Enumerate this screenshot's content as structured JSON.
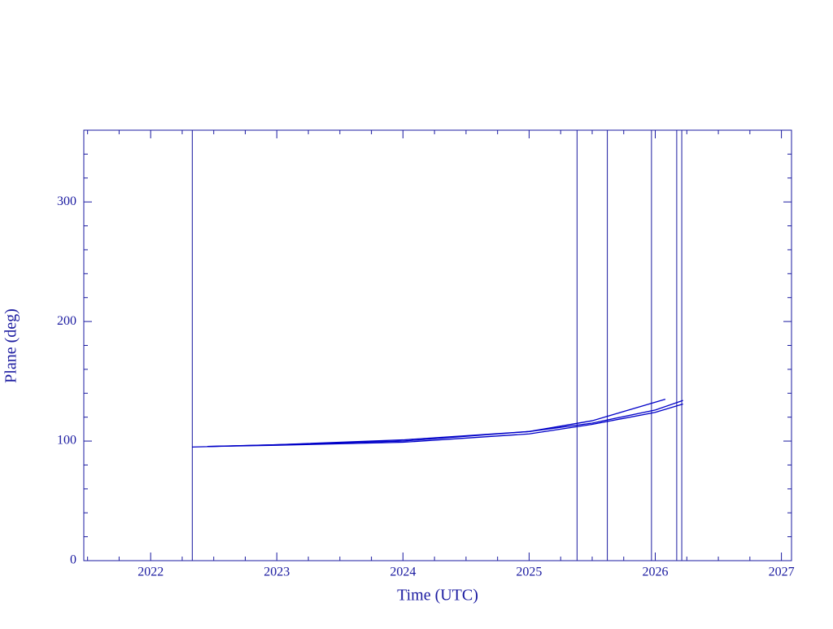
{
  "chart_data": {
    "type": "line",
    "xlabel": "Time (UTC)",
    "ylabel": "Plane (deg)",
    "xlim": [
      2021.47,
      2027.08
    ],
    "ylim": [
      0,
      360
    ],
    "xticks": [
      2022,
      2023,
      2024,
      2025,
      2026,
      2027
    ],
    "yticks": [
      0,
      100,
      200,
      300
    ],
    "xminorticks": [
      2021.5,
      2021.75,
      2022.25,
      2022.5,
      2022.75,
      2023.25,
      2023.5,
      2023.75,
      2024.25,
      2024.5,
      2024.75,
      2025.25,
      2025.5,
      2025.75,
      2026.25,
      2026.5,
      2026.75
    ],
    "yminorticks": [
      20,
      40,
      60,
      80,
      120,
      140,
      160,
      180,
      220,
      240,
      260,
      280,
      320,
      340
    ],
    "vlines": [
      2022.33,
      2025.38,
      2025.62,
      2025.97,
      2026.17,
      2026.21
    ],
    "axis_color": "#1a1aa0",
    "series": [
      {
        "color": "#0000c8",
        "x": [
          2022.33,
          2023,
          2024,
          2025,
          2025.5,
          2026.08
        ],
        "values": [
          95,
          97,
          100,
          108,
          117,
          135
        ]
      },
      {
        "color": "#0000c8",
        "x": [
          2022.45,
          2023,
          2024,
          2025,
          2025.5,
          2026,
          2026.22
        ],
        "values": [
          95.5,
          97,
          101,
          108,
          115,
          126,
          134
        ]
      },
      {
        "color": "#0000c8",
        "x": [
          2022.45,
          2023,
          2024,
          2025,
          2025.5,
          2026,
          2026.22
        ],
        "values": [
          95.5,
          96.5,
          99,
          106,
          114,
          124,
          131
        ]
      }
    ]
  }
}
